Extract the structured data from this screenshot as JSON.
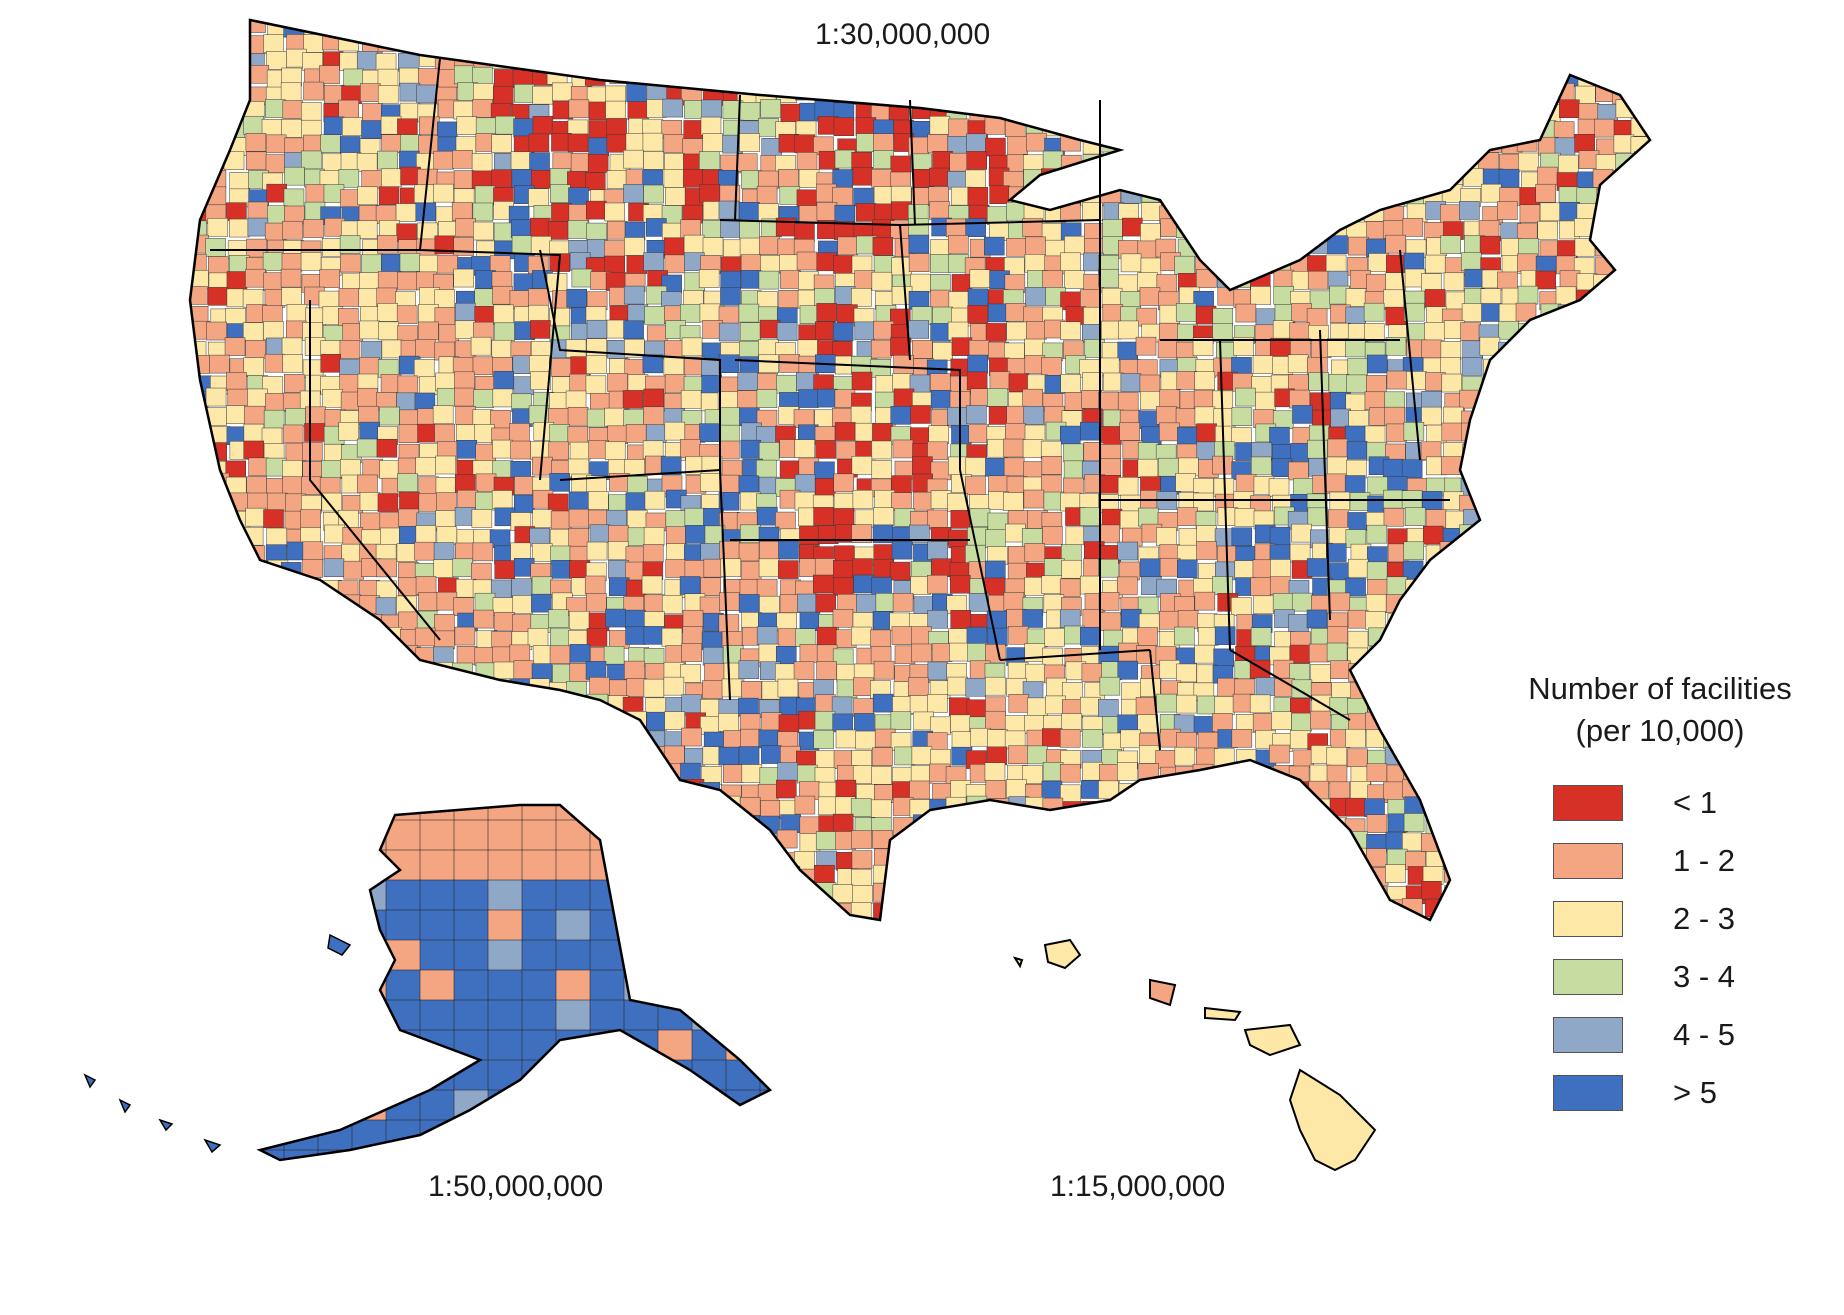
{
  "scales": {
    "conus": "1:30,000,000",
    "alaska": "1:50,000,000",
    "hawaii": "1:15,000,000"
  },
  "legend": {
    "title_line1": "Number of facilities",
    "title_line2": "(per 10,000)",
    "items": [
      {
        "label": "< 1",
        "color": "#d73027"
      },
      {
        "label": "1 - 2",
        "color": "#f4a582"
      },
      {
        "label": "2 - 3",
        "color": "#fee8a8"
      },
      {
        "label": "3 - 4",
        "color": "#c7dca0"
      },
      {
        "label": "4 - 5",
        "color": "#8fa8c8"
      },
      {
        "label": "> 5",
        "color": "#3f6fbf"
      }
    ]
  }
}
